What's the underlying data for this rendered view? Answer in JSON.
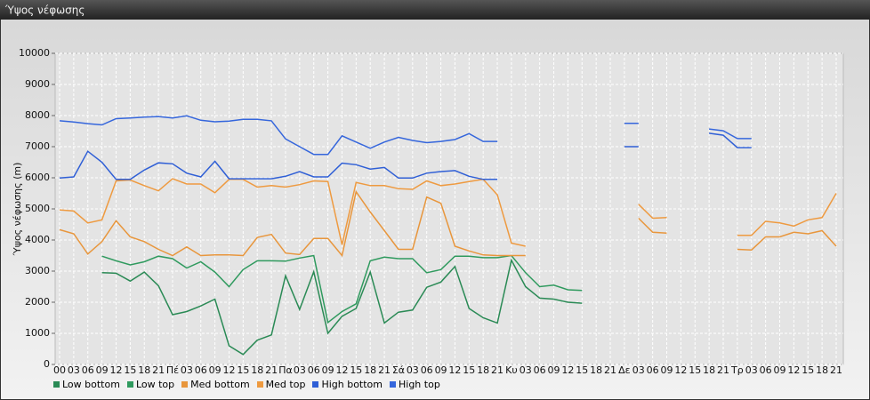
{
  "chart_data": {
    "type": "line",
    "title": "Ύψος νέφωσης",
    "y_label": "Ύψος νέφωσης (m)",
    "categories": [
      "00",
      "03",
      "06",
      "09",
      "12",
      "15",
      "18",
      "21",
      "Πέ",
      "03",
      "06",
      "09",
      "12",
      "15",
      "18",
      "21",
      "Πα",
      "03",
      "06",
      "09",
      "12",
      "15",
      "18",
      "21",
      "Σά",
      "03",
      "06",
      "09",
      "12",
      "15",
      "18",
      "21",
      "Κυ",
      "03",
      "06",
      "09",
      "12",
      "15",
      "18",
      "21",
      "Δε",
      "03",
      "06",
      "09",
      "12",
      "15",
      "18",
      "21",
      "Τρ",
      "03",
      "06",
      "09",
      "12",
      "15",
      "18",
      "21"
    ],
    "series": [
      {
        "name": "Low bottom",
        "color": "#2a8a55",
        "values": [
          null,
          null,
          null,
          2950,
          2930,
          2680,
          2970,
          2530,
          1600,
          1700,
          1880,
          2100,
          600,
          320,
          780,
          950,
          2850,
          1770,
          2980,
          1000,
          1550,
          1800,
          2970,
          1330,
          1680,
          1750,
          2480,
          2650,
          3150,
          1800,
          1500,
          1330,
          3350,
          2500,
          2130,
          2100,
          2000,
          1970,
          null,
          null,
          null,
          null,
          null,
          null,
          null,
          null,
          null,
          null,
          null,
          null,
          null,
          null,
          null,
          null,
          null,
          null
        ]
      },
      {
        "name": "Low top",
        "color": "#2f9a5e",
        "values": [
          null,
          null,
          null,
          3480,
          3330,
          3200,
          3300,
          3480,
          3400,
          3100,
          3300,
          2970,
          2500,
          3050,
          3330,
          3330,
          3320,
          3420,
          3500,
          1350,
          1700,
          1950,
          3330,
          3450,
          3400,
          3400,
          2950,
          3050,
          3480,
          3480,
          3430,
          3430,
          3500,
          2950,
          2500,
          2550,
          2400,
          2380,
          null,
          null,
          null,
          null,
          null,
          null,
          null,
          null,
          null,
          null,
          null,
          null,
          null,
          null,
          null,
          null,
          null,
          null
        ]
      },
      {
        "name": "Med bottom",
        "color": "#e8963c",
        "values": [
          4330,
          4200,
          3550,
          3950,
          4620,
          4100,
          3950,
          3700,
          3500,
          3780,
          3500,
          3520,
          3520,
          3500,
          4080,
          4180,
          3580,
          3530,
          4050,
          4050,
          3500,
          5550,
          4900,
          4300,
          3700,
          3700,
          5380,
          5180,
          3800,
          3650,
          3520,
          3500,
          3500,
          3500,
          null,
          null,
          null,
          null,
          null,
          null,
          null,
          4700,
          4250,
          4220,
          null,
          null,
          null,
          null,
          3700,
          3680,
          4100,
          4100,
          4250,
          4200,
          4300,
          3800
        ]
      },
      {
        "name": "Med top",
        "color": "#ee9a40",
        "values": [
          4970,
          4930,
          4550,
          4650,
          5900,
          5930,
          5750,
          5580,
          5970,
          5800,
          5800,
          5520,
          5950,
          5950,
          5700,
          5750,
          5700,
          5780,
          5900,
          5880,
          3850,
          5850,
          5750,
          5750,
          5650,
          5630,
          5900,
          5750,
          5800,
          5880,
          5950,
          5450,
          3900,
          3800,
          null,
          null,
          null,
          null,
          null,
          null,
          null,
          5150,
          4700,
          4720,
          null,
          null,
          null,
          null,
          4150,
          4150,
          4600,
          4550,
          4450,
          4650,
          4720,
          5500
        ]
      },
      {
        "name": "High bottom",
        "color": "#2f5fd6",
        "values": [
          5990,
          6030,
          6850,
          6500,
          5950,
          5950,
          6250,
          6480,
          6450,
          6150,
          6030,
          6530,
          5970,
          5970,
          5970,
          5970,
          6050,
          6200,
          6030,
          6030,
          6470,
          6420,
          6280,
          6330,
          5990,
          5990,
          6150,
          6200,
          6230,
          6050,
          5950,
          5950,
          null,
          null,
          null,
          null,
          null,
          null,
          null,
          null,
          7000,
          7000,
          null,
          null,
          null,
          null,
          7430,
          7370,
          6970,
          6970,
          null,
          null,
          null,
          null,
          null,
          null
        ]
      },
      {
        "name": "High top",
        "color": "#3566dc",
        "values": [
          7830,
          7790,
          7740,
          7700,
          7900,
          7920,
          7950,
          7970,
          7920,
          7990,
          7850,
          7800,
          7820,
          7880,
          7880,
          7830,
          7250,
          7000,
          6750,
          6750,
          7350,
          7150,
          6950,
          7150,
          7300,
          7200,
          7130,
          7170,
          7230,
          7420,
          7170,
          7170,
          null,
          null,
          null,
          null,
          null,
          null,
          null,
          null,
          7750,
          7750,
          null,
          null,
          null,
          null,
          7570,
          7510,
          7260,
          7260,
          null,
          null,
          null,
          null,
          null,
          null
        ]
      }
    ],
    "ylim": [
      0,
      10000
    ],
    "yticks": [
      0,
      1000,
      2000,
      3000,
      4000,
      5000,
      6000,
      7000,
      8000,
      9000,
      10000
    ],
    "grid": true,
    "legend": "bottom"
  }
}
